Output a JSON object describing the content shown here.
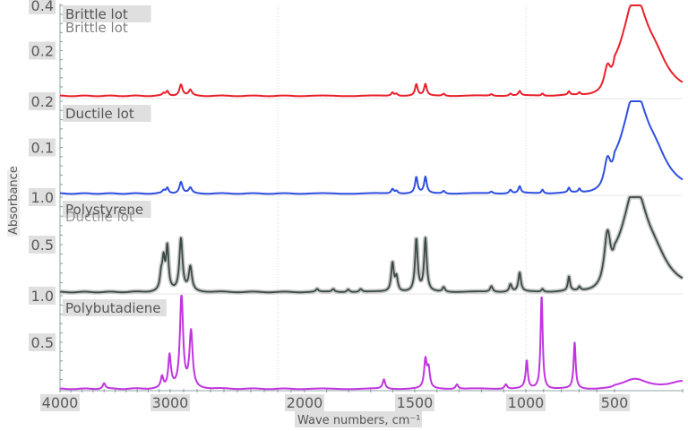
{
  "chart_data": {
    "type": "line",
    "title": "",
    "xlabel": "Wave numbers, cm⁻¹",
    "ylabel": "Absorbance",
    "x_reversed": true,
    "xlim": [
      4000,
      400
    ],
    "x_ticks": [
      4000,
      3000,
      2000,
      1500,
      1000,
      500
    ],
    "x_tick_labels": [
      "4000",
      "3000",
      "2000",
      "1500",
      "1000",
      "500"
    ],
    "grid": "vertical dotted gridlines at 2200 and 1000",
    "layout": "stacked panels sharing x-axis",
    "panels": [
      {
        "name": "Brittle lot",
        "color": "#e8202a",
        "ylim": [
          0.0,
          0.4
        ],
        "y_ticks": [
          0.2,
          0.4
        ],
        "y_tick_labels": [
          "0.2",
          "0.4"
        ],
        "peaks": [
          [
            3060,
            0.01
          ],
          [
            3026,
            0.02
          ],
          [
            2920,
            0.05
          ],
          [
            2850,
            0.025
          ],
          [
            1601,
            0.015
          ],
          [
            1583,
            0.01
          ],
          [
            1493,
            0.05
          ],
          [
            1452,
            0.05
          ],
          [
            1370,
            0.01
          ],
          [
            1155,
            0.007
          ],
          [
            1069,
            0.01
          ],
          [
            1028,
            0.02
          ],
          [
            906,
            0.01
          ],
          [
            757,
            0.015
          ],
          [
            698,
            0.01
          ],
          [
            540,
            0.1
          ],
          [
            470,
            0.4
          ],
          [
            440,
            0.1
          ]
        ],
        "baseline": 0.0
      },
      {
        "name": "Ductile lot",
        "color": "#2f4fe0",
        "ylim": [
          0.0,
          0.2
        ],
        "y_ticks": [
          0.1,
          0.2
        ],
        "y_tick_labels": [
          "0.1",
          "0.2"
        ],
        "peaks": [
          [
            3060,
            0.006
          ],
          [
            3026,
            0.012
          ],
          [
            2920,
            0.025
          ],
          [
            2850,
            0.012
          ],
          [
            1601,
            0.01
          ],
          [
            1583,
            0.006
          ],
          [
            1493,
            0.035
          ],
          [
            1452,
            0.035
          ],
          [
            1370,
            0.006
          ],
          [
            1155,
            0.004
          ],
          [
            1069,
            0.008
          ],
          [
            1028,
            0.015
          ],
          [
            906,
            0.008
          ],
          [
            757,
            0.01
          ],
          [
            698,
            0.008
          ],
          [
            540,
            0.06
          ],
          [
            470,
            0.2
          ],
          [
            440,
            0.05
          ]
        ],
        "baseline": 0.0
      },
      {
        "name": "Polystyrene",
        "color": "#3a4a45",
        "ylim": [
          0.0,
          1.0
        ],
        "y_ticks": [
          0.5,
          1.0
        ],
        "y_tick_labels": [
          "0.5",
          "1.0"
        ],
        "peaks": [
          [
            3082,
            0.15
          ],
          [
            3060,
            0.3
          ],
          [
            3026,
            0.45
          ],
          [
            2920,
            0.55
          ],
          [
            2850,
            0.25
          ],
          [
            1943,
            0.03
          ],
          [
            1870,
            0.03
          ],
          [
            1802,
            0.03
          ],
          [
            1745,
            0.03
          ],
          [
            1601,
            0.3
          ],
          [
            1583,
            0.15
          ],
          [
            1493,
            0.55
          ],
          [
            1452,
            0.55
          ],
          [
            1370,
            0.05
          ],
          [
            1155,
            0.06
          ],
          [
            1069,
            0.08
          ],
          [
            1028,
            0.2
          ],
          [
            906,
            0.03
          ],
          [
            757,
            0.15
          ],
          [
            698,
            0.04
          ],
          [
            540,
            0.55
          ],
          [
            470,
            1.0
          ],
          [
            440,
            0.2
          ]
        ],
        "baseline": 0.0
      },
      {
        "name": "Polybutadiene",
        "color": "#c035e0",
        "ylim": [
          0.0,
          1.0
        ],
        "y_ticks": [
          0.5,
          1.0
        ],
        "y_tick_labels": [
          "0.5",
          "1.0"
        ],
        "peaks": [
          [
            3600,
            0.06
          ],
          [
            3074,
            0.12
          ],
          [
            3006,
            0.35
          ],
          [
            2916,
            1.0
          ],
          [
            2845,
            0.6
          ],
          [
            1640,
            0.1
          ],
          [
            1452,
            0.3
          ],
          [
            1438,
            0.2
          ],
          [
            1310,
            0.05
          ],
          [
            1090,
            0.05
          ],
          [
            995,
            0.3
          ],
          [
            911,
            1.0
          ],
          [
            800,
            0.0
          ],
          [
            725,
            0.5
          ],
          [
            470,
            0.1
          ],
          [
            400,
            0.08
          ]
        ],
        "baseline": 0.0
      }
    ]
  },
  "overlay_ghost_labels": [
    "Brittle lot",
    "Ductile lot"
  ]
}
